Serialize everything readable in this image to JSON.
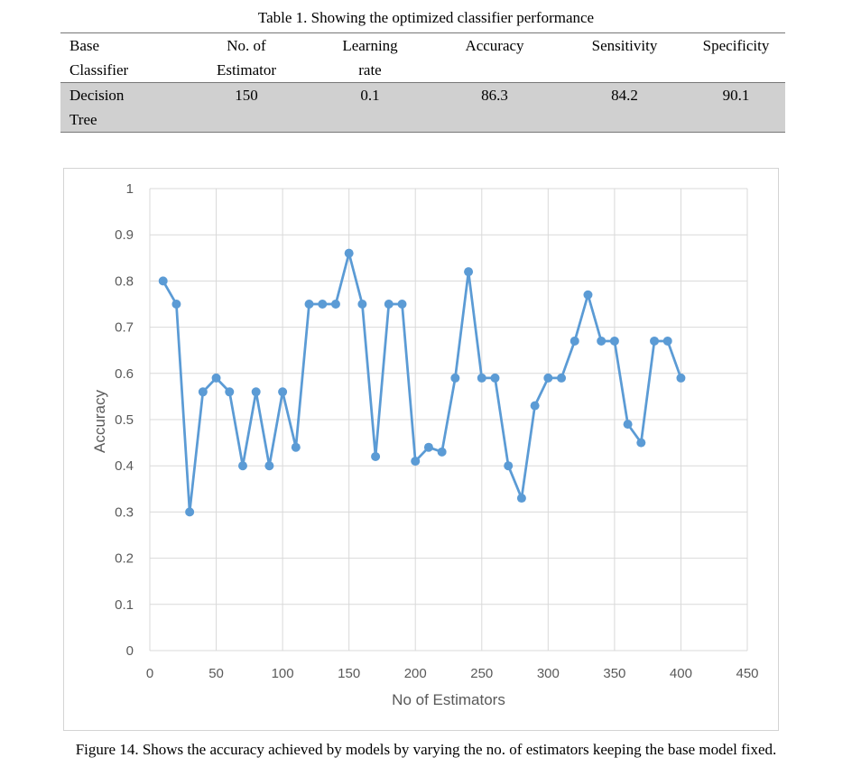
{
  "table": {
    "caption": "Table 1. Showing the optimized classifier performance",
    "headers": [
      [
        "Base",
        "Classifier"
      ],
      [
        "No. of",
        "Estimator"
      ],
      [
        "Learning",
        "rate"
      ],
      [
        "Accuracy"
      ],
      [
        "Sensitivity"
      ],
      [
        "Specificity"
      ]
    ],
    "rows": [
      {
        "cells": [
          [
            "Decision",
            "Tree"
          ],
          [
            "150"
          ],
          [
            "0.1"
          ],
          [
            "86.3"
          ],
          [
            "84.2"
          ],
          [
            "90.1"
          ]
        ]
      }
    ]
  },
  "chart_data": {
    "type": "line",
    "title": "",
    "xlabel": "No of Estimators",
    "ylabel": "Accuracy",
    "xlim": [
      0,
      450
    ],
    "ylim": [
      0,
      1
    ],
    "xticks": [
      0,
      50,
      100,
      150,
      200,
      250,
      300,
      350,
      400,
      450
    ],
    "yticks": [
      0,
      0.1,
      0.2,
      0.3,
      0.4,
      0.5,
      0.6,
      0.7,
      0.8,
      0.9,
      1
    ],
    "grid": true,
    "line_color": "#5b9bd5",
    "grid_color": "#d9d9d9",
    "series": [
      {
        "x": [
          10,
          20,
          30,
          40,
          50,
          60,
          70,
          80,
          90,
          100,
          110,
          120,
          130,
          140,
          150,
          160,
          170,
          180,
          190,
          200,
          210,
          220,
          230,
          240,
          250,
          260,
          270,
          280,
          290,
          300,
          310,
          320,
          330,
          340,
          350,
          360,
          370,
          380,
          390,
          400
        ],
        "y": [
          0.8,
          0.75,
          0.3,
          0.56,
          0.59,
          0.56,
          0.4,
          0.56,
          0.4,
          0.56,
          0.44,
          0.75,
          0.75,
          0.75,
          0.86,
          0.75,
          0.42,
          0.75,
          0.75,
          0.41,
          0.44,
          0.43,
          0.59,
          0.82,
          0.59,
          0.59,
          0.4,
          0.33,
          0.53,
          0.59,
          0.59,
          0.67,
          0.77,
          0.67,
          0.67,
          0.49,
          0.45,
          0.67,
          0.67,
          0.59
        ]
      }
    ]
  },
  "figure_caption": "Figure 14. Shows the accuracy achieved by models by varying the no. of estimators keeping the base model fixed."
}
